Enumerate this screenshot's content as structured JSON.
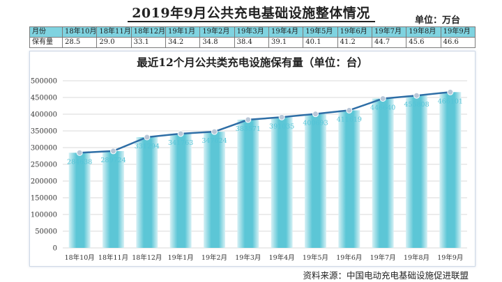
{
  "header": {
    "title": "2019年9月公共充电基础设施整体情况",
    "unit": "单位：万台",
    "source": "资料来源：中国电动充电基础设施促进联盟"
  },
  "summary_table": {
    "row_label_month": "月份",
    "row_label_total": "保有量",
    "months": [
      "18年10月",
      "18年11月",
      "18年12月",
      "19年1月",
      "19年2月",
      "19年3月",
      "19年4月",
      "19年5月",
      "19年6月",
      "19年7月",
      "19年8月",
      "19年9月"
    ],
    "values": [
      "28.5",
      "29.0",
      "33.1",
      "34.2",
      "34.8",
      "38.4",
      "39.1",
      "40.1",
      "41.2",
      "44.7",
      "45.6",
      "46.6"
    ]
  },
  "colors": {
    "bar": "#5cc6d6",
    "bar_light": "#d7f1f5",
    "line": "#2e6ea6",
    "marker": "#b9c7d8",
    "label": "#52c3d6",
    "grid": "#d9d9d9"
  },
  "chart_data": {
    "type": "bar",
    "title": "最近12个月公共类充电设施保有量（单位：台）",
    "categories": [
      "18年10月",
      "18年11月",
      "18年12月",
      "19年1月",
      "19年2月",
      "19年3月",
      "19年4月",
      "19年5月",
      "19年6月",
      "19年7月",
      "19年8月",
      "19年9月"
    ],
    "values": [
      284638,
      289724,
      331294,
      341763,
      347624,
      383571,
      391035,
      400693,
      411619,
      446640,
      455808,
      466101
    ],
    "overlay_line": true,
    "ylim": [
      0,
      500000
    ],
    "yticks": [
      0,
      50000,
      100000,
      150000,
      200000,
      250000,
      300000,
      350000,
      400000,
      450000,
      500000
    ],
    "grid": true,
    "legend": "none",
    "xlabel": "",
    "ylabel": ""
  }
}
